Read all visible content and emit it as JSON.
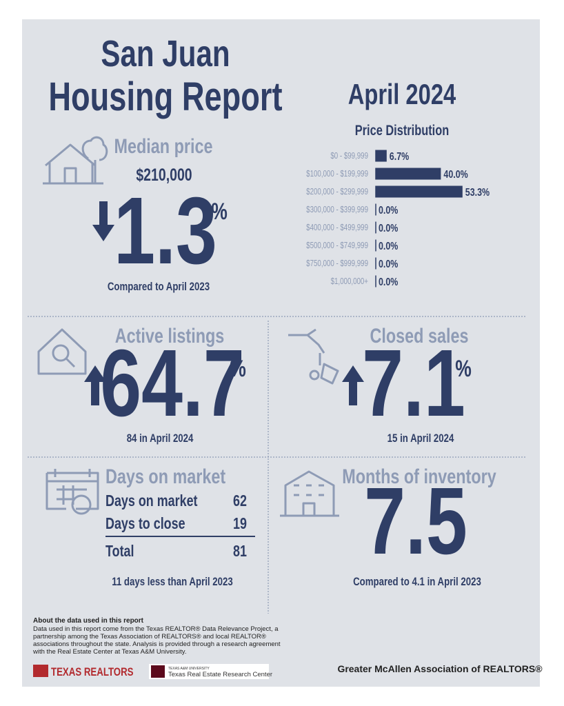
{
  "header": {
    "title_line1": "San Juan",
    "title_line2": "Housing Report",
    "period": "April 2024"
  },
  "median_price": {
    "heading": "Median price",
    "value": "$210,000",
    "change": "1.3",
    "unit": "%",
    "note": "Compared to April 2023"
  },
  "price_distribution": {
    "type": "bar",
    "title": "Price Distribution",
    "color": "#2f3e66",
    "categories": [
      "$0 - $99,999",
      "$100,000 - $199,999",
      "$200,000 - $299,999",
      "$300,000 - $399,999",
      "$400,000 - $499,999",
      "$500,000 - $749,999",
      "$750,000 - $999,999",
      "$1,000,000+"
    ],
    "values": [
      6.7,
      40.0,
      53.3,
      0.0,
      0.0,
      0.0,
      0.0,
      0.0
    ],
    "value_labels": [
      "6.7%",
      "40.0%",
      "53.3%",
      "0.0%",
      "0.0%",
      "0.0%",
      "0.0%",
      "0.0%"
    ]
  },
  "active_listings": {
    "heading": "Active listings",
    "change": "64.7",
    "unit": "%",
    "note": "84 in April 2024"
  },
  "closed_sales": {
    "heading": "Closed sales",
    "change": "7.1",
    "unit": "%",
    "note": "15 in April 2024"
  },
  "days_on_market": {
    "heading": "Days on market",
    "rows": [
      [
        "Days on market",
        "62"
      ],
      [
        "Days to close",
        "19"
      ]
    ],
    "total": [
      "Total",
      "81"
    ],
    "note": "11 days less than April 2023"
  },
  "months_of_inventory": {
    "heading": "Months of inventory",
    "value": "7.5",
    "note": "Compared to 4.1 in April 2023"
  },
  "footer": {
    "about_title": "About the data used in this report",
    "about_lines": [
      "Data used in this report come from the Texas REALTOR® Data Relevance Project, a",
      "partnership among the Texas Association of REALTORS® and local REALTOR®",
      "associations throughout the state. Analysis is provided through a research agreement",
      "with the Real Estate Center at Texas A&M University."
    ],
    "logo_realtors": "TEXAS REALTORS",
    "logo_tamu_small": "TEXAS A&M UNIVERSITY",
    "logo_tamu": "Texas Real Estate Research Center",
    "association": "Greater McAllen Association of REALTORS®"
  }
}
